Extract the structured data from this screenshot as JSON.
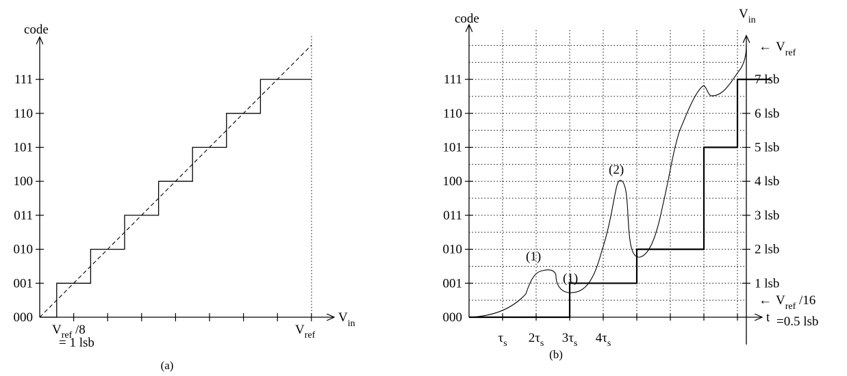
{
  "figure_a": {
    "caption": "(a)",
    "y_axis_label": "code",
    "x_axis_label": {
      "main": "V",
      "sub": "in"
    },
    "codes": [
      "000",
      "001",
      "010",
      "011",
      "100",
      "101",
      "110",
      "111"
    ],
    "x_label_left": {
      "main": "V",
      "sub": "ref",
      "rest": " /8"
    },
    "x_label_left_line2": "= 1 lsb",
    "x_label_right": {
      "main": "V",
      "sub": "ref"
    },
    "staircase_steps": 7,
    "ideal_line": "dashed"
  },
  "figure_b": {
    "caption": "(b)",
    "y_axis_label": "code",
    "right_axis_label": {
      "main": "V",
      "sub": "in"
    },
    "x_axis_label": "t",
    "codes": [
      "000",
      "001",
      "010",
      "011",
      "100",
      "101",
      "110",
      "111"
    ],
    "lsb_labels": [
      "1 lsb",
      "2 lsb",
      "3 lsb",
      "4 lsb",
      "5 lsb",
      "6 lsb",
      "7 lsb"
    ],
    "tau_labels": [
      {
        "coef": "",
        "sym": "τ",
        "sub": "s"
      },
      {
        "coef": "2",
        "sym": "τ",
        "sub": "s"
      },
      {
        "coef": "3",
        "sym": "τ",
        "sub": "s"
      },
      {
        "coef": "4",
        "sym": "τ",
        "sub": "s"
      }
    ],
    "vref_label": {
      "arrow": "←",
      "main": "V",
      "sub": "ref"
    },
    "half_lsb_label": {
      "arrow": "←",
      "main": "V",
      "sub": "ref",
      "rest": " /16"
    },
    "half_lsb_label_line2": "=0.5 lsb",
    "annotations": [
      "(1)",
      "(1)",
      "(2)"
    ],
    "staircase_codes": [
      0,
      0,
      1,
      1,
      2,
      2,
      5,
      7,
      7
    ]
  }
}
